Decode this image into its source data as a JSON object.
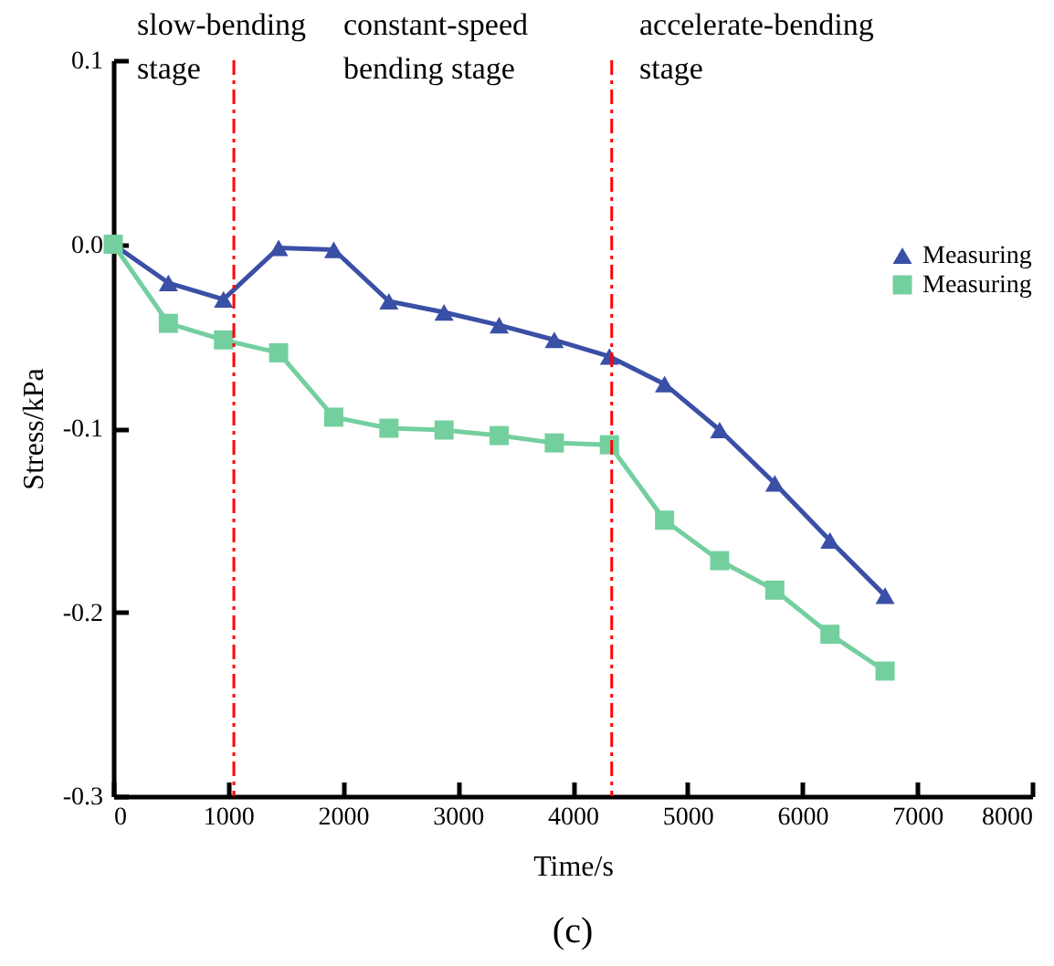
{
  "chart_data": {
    "type": "line",
    "xlabel": "Time/s",
    "ylabel": "Stress/kPa",
    "x": [
      0,
      480,
      960,
      1440,
      1920,
      2400,
      2880,
      3360,
      3840,
      4320,
      4800,
      5280,
      5760,
      6240,
      6720
    ],
    "series": [
      {
        "name": "Measuring",
        "color": "#3a4fa6",
        "marker": "triangle",
        "values": [
          0,
          -0.021,
          -0.03,
          -0.002,
          -0.003,
          -0.031,
          -0.037,
          -0.044,
          -0.052,
          -0.061,
          -0.076,
          -0.101,
          -0.13,
          -0.161,
          -0.191
        ]
      },
      {
        "name": "Measuring",
        "color": "#74cf9e",
        "marker": "square",
        "values": [
          0,
          -0.043,
          -0.052,
          -0.059,
          -0.094,
          -0.1,
          -0.101,
          -0.104,
          -0.108,
          -0.109,
          -0.15,
          -0.172,
          -0.188,
          -0.212,
          -0.232
        ]
      }
    ],
    "xlim": [
      0,
      8000
    ],
    "xticks": [
      0,
      1000,
      2000,
      3000,
      4000,
      5000,
      6000,
      7000,
      8000
    ],
    "ylim": [
      -0.3,
      0.1
    ],
    "yticks": [
      -0.3,
      -0.2,
      -0.1,
      {
        "value": 0,
        "label": "0.0"
      },
      0.1
    ],
    "ref_lines": [
      {
        "axis": "x",
        "value": 1050,
        "color": "#ff0000",
        "line_style": "dashdot"
      },
      {
        "axis": "x",
        "value": 4340,
        "color": "#ff0000",
        "line_style": "dashdot"
      }
    ],
    "annotations": [
      "slow-bending stage",
      "constant-speed bending stage",
      "accelerate-bending stage",
      "(c)"
    ],
    "legend": "right",
    "grid": false
  }
}
